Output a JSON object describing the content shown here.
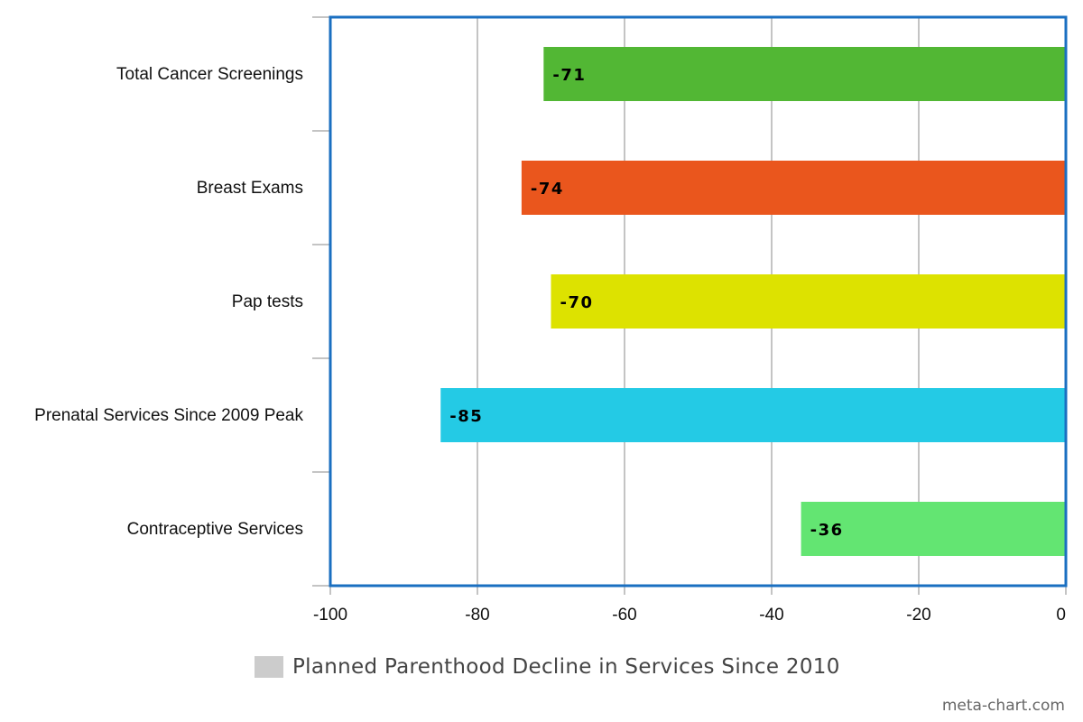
{
  "chart_data": {
    "type": "bar",
    "orientation": "horizontal",
    "categories": [
      "Total Cancer Screenings",
      "Breast Exams",
      "Pap tests",
      "Prenatal Services Since 2009 Peak",
      "Contraceptive Services"
    ],
    "values": [
      -71,
      -74,
      -70,
      -85,
      -36
    ],
    "bar_colors": [
      "#52b734",
      "#ea561d",
      "#dde200",
      "#24cae5",
      "#63e572"
    ],
    "xlim": [
      -100,
      0
    ],
    "xticks": [
      "-100",
      "-80",
      "-60",
      "-40",
      "-20",
      "0"
    ],
    "grid": true,
    "legend": {
      "label": "Planned Parenthood Decline in Services Since 2010",
      "color": "#cccccc",
      "position": "bottom"
    },
    "frame_color": "#1a6fc1"
  },
  "watermark": "meta-chart.com"
}
